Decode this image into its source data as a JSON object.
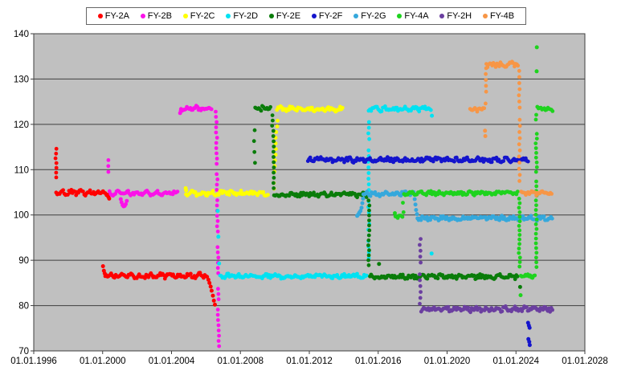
{
  "chart_data": {
    "type": "scatter",
    "title": "",
    "x_range": [
      1996,
      2028
    ],
    "y_range": [
      70,
      140
    ],
    "x_tick_labels": [
      "01.01.1996",
      "01.01.2000",
      "01.01.2004",
      "01.01.2008",
      "01.01.2012",
      "01.01.2016",
      "01.01.2020",
      "01.01.2024",
      "01.01.2028"
    ],
    "x_tick_years": [
      1996,
      2000,
      2004,
      2008,
      2012,
      2016,
      2020,
      2024,
      2028
    ],
    "y_tick_labels": [
      "70",
      "80",
      "90",
      "100",
      "110",
      "120",
      "130",
      "140"
    ],
    "y_tick_values": [
      70,
      80,
      90,
      100,
      110,
      120,
      130,
      140
    ],
    "grid": "on",
    "legend_position": "top-center",
    "plot_bg_color": "#c0c0c0",
    "grid_color": "#3f3f3f",
    "axis_text_color": "#000000",
    "series": [
      {
        "name": "FY-2A",
        "color": "#ff0000",
        "segments": [
          {
            "k": "drift",
            "x": 1997.28,
            "y1": 114.6,
            "y2": 106.0,
            "st": 1.05,
            "skip": 0.25
          },
          {
            "k": "level",
            "x1": 1997.3,
            "x2": 2000.35,
            "y": 104.9,
            "n": 0.5
          },
          {
            "k": "pts",
            "p": [
              [
                2000.33,
                104.0
              ],
              [
                2000.38,
                103.6
              ]
            ]
          },
          {
            "k": "pts",
            "p": [
              [
                2000.02,
                88.7
              ],
              [
                2000.07,
                87.7
              ],
              [
                2000.12,
                87.1
              ]
            ]
          },
          {
            "k": "level",
            "x1": 2000.15,
            "x2": 2006.1,
            "y": 86.6,
            "n": 0.5
          },
          {
            "k": "pts",
            "p": [
              [
                2006.14,
                85.7
              ],
              [
                2006.2,
                85.0
              ],
              [
                2006.27,
                84.2
              ],
              [
                2006.33,
                83.3
              ],
              [
                2006.4,
                82.2
              ],
              [
                2006.46,
                81.1
              ],
              [
                2006.52,
                80.2
              ]
            ]
          }
        ]
      },
      {
        "name": "FY-2B",
        "color": "#fb12e9",
        "segments": [
          {
            "k": "drift",
            "x": 2000.36,
            "y1": 112.1,
            "y2": 106.0,
            "st": 1.3,
            "skip": 0.25
          },
          {
            "k": "level",
            "x1": 2000.4,
            "x2": 2004.38,
            "y": 104.8,
            "n": 0.45
          },
          {
            "k": "pts",
            "p": [
              [
                2001.05,
                103.5
              ],
              [
                2001.1,
                102.8
              ],
              [
                2001.16,
                102.2
              ],
              [
                2001.22,
                101.9
              ],
              [
                2001.28,
                102.0
              ],
              [
                2001.34,
                102.4
              ],
              [
                2001.4,
                103.1
              ]
            ]
          },
          {
            "k": "pts",
            "p": [
              [
                2004.5,
                122.5
              ],
              [
                2004.54,
                123.0
              ]
            ]
          },
          {
            "k": "level",
            "x1": 2004.55,
            "x2": 2006.32,
            "y": 123.5,
            "n": 0.45
          },
          {
            "k": "drift",
            "x": 2006.6,
            "y1": 122.8,
            "y2": 70.4,
            "st": 1.15,
            "skip": 0.1,
            "dx": 0.14
          }
        ]
      },
      {
        "name": "FY-2C",
        "color": "#ffff00",
        "segments": [
          {
            "k": "pts",
            "p": [
              [
                2004.82,
                105.9
              ],
              [
                2004.85,
                105.4
              ]
            ]
          },
          {
            "k": "level",
            "x1": 2004.84,
            "x2": 2009.6,
            "y": 104.8,
            "n": 0.45
          },
          {
            "k": "drift",
            "x": 2009.92,
            "y1": 105.8,
            "y2": 122.2,
            "st": 1.25,
            "skip": 0.12,
            "dx": 0.22
          },
          {
            "k": "level",
            "x1": 2010.12,
            "x2": 2013.95,
            "y": 123.4,
            "n": 0.45
          }
        ]
      },
      {
        "name": "FY-2D",
        "color": "#00e2f2",
        "segments": [
          {
            "k": "pts",
            "p": [
              [
                2006.68,
                100.9
              ],
              [
                2006.72,
                95.2
              ],
              [
                2006.76,
                89.3
              ]
            ]
          },
          {
            "k": "level",
            "x1": 2006.82,
            "x2": 2015.38,
            "y": 86.5,
            "n": 0.45
          },
          {
            "k": "drift",
            "x": 2015.45,
            "y1": 88.0,
            "y2": 123.0,
            "st": 1.25,
            "skip": 0.15
          },
          {
            "k": "level",
            "x1": 2015.52,
            "x2": 2019.08,
            "y": 123.4,
            "n": 0.45
          },
          {
            "k": "pts",
            "p": [
              [
                2019.12,
                121.9
              ],
              [
                2019.1,
                91.5
              ]
            ]
          }
        ]
      },
      {
        "name": "FY-2E",
        "color": "#0a7c0a",
        "segments": [
          {
            "k": "drift",
            "x": 2008.82,
            "y1": 111.5,
            "y2": 121.0,
            "st": 2.4,
            "skip": 0.2
          },
          {
            "k": "level",
            "x1": 2008.86,
            "x2": 2009.78,
            "y": 123.5,
            "n": 0.55
          },
          {
            "k": "drift",
            "x": 2009.86,
            "y1": 122.0,
            "y2": 105.8,
            "st": 1.15,
            "skip": 0.08,
            "dx": 0.1
          },
          {
            "k": "level",
            "x1": 2009.95,
            "x2": 2015.4,
            "y": 104.5,
            "n": 0.45
          },
          {
            "k": "drift",
            "x": 2015.46,
            "y1": 103.2,
            "y2": 87.6,
            "st": 1.1,
            "skip": 0.08
          },
          {
            "k": "level",
            "x1": 2015.52,
            "x2": 2024.12,
            "y": 86.4,
            "n": 0.45
          },
          {
            "k": "pts",
            "p": [
              [
                2016.05,
                89.2
              ],
              [
                2024.24,
                84.1
              ]
            ]
          }
        ]
      },
      {
        "name": "FY-2F",
        "color": "#1414cc",
        "segments": [
          {
            "k": "level",
            "x1": 2011.92,
            "x2": 2024.76,
            "y": 112.2,
            "n": 0.5
          },
          {
            "k": "pts",
            "p": [
              [
                2024.7,
                76.2
              ],
              [
                2024.75,
                75.6
              ],
              [
                2024.79,
                75.1
              ],
              [
                2024.72,
                72.6
              ],
              [
                2024.77,
                72.0
              ],
              [
                2024.8,
                71.3
              ]
            ]
          }
        ]
      },
      {
        "name": "FY-2G",
        "color": "#35a8dc",
        "segments": [
          {
            "k": "pts",
            "p": [
              [
                2014.78,
                99.8
              ],
              [
                2014.84,
                100.1
              ],
              [
                2014.9,
                100.5
              ],
              [
                2014.97,
                100.9
              ],
              [
                2015.03,
                101.6
              ],
              [
                2015.08,
                102.6
              ],
              [
                2015.12,
                103.6
              ]
            ]
          },
          {
            "k": "level",
            "x1": 2015.14,
            "x2": 2018.08,
            "y": 104.7,
            "n": 0.45
          },
          {
            "k": "pts",
            "p": [
              [
                2018.12,
                103.5
              ],
              [
                2018.16,
                102.3
              ],
              [
                2018.2,
                101.1
              ],
              [
                2018.25,
                100.2
              ]
            ]
          },
          {
            "k": "level",
            "x1": 2018.28,
            "x2": 2026.12,
            "y": 99.3,
            "n": 0.45
          }
        ]
      },
      {
        "name": "FY-4A",
        "color": "#1ed31e",
        "segments": [
          {
            "k": "pts",
            "p": [
              [
                2016.97,
                100.4
              ]
            ]
          },
          {
            "k": "level",
            "x1": 2017.0,
            "x2": 2017.42,
            "y": 99.6,
            "n": 0.35
          },
          {
            "k": "drift",
            "x": 2017.46,
            "y1": 100.6,
            "y2": 103.8,
            "st": 1.05,
            "skip": 0.1
          },
          {
            "k": "level",
            "x1": 2017.5,
            "x2": 2024.14,
            "y": 104.8,
            "n": 0.4
          },
          {
            "k": "drift",
            "x": 2024.2,
            "y1": 103.6,
            "y2": 87.8,
            "st": 1.0,
            "skip": 0.06
          },
          {
            "k": "pts",
            "p": [
              [
                2024.27,
                82.3
              ]
            ]
          },
          {
            "k": "level",
            "x1": 2024.28,
            "x2": 2025.12,
            "y": 86.5,
            "n": 0.4
          },
          {
            "k": "drift",
            "x": 2025.18,
            "y1": 88.5,
            "y2": 123.0,
            "st": 1.05,
            "skip": 0.08
          },
          {
            "k": "pts",
            "p": [
              [
                2025.2,
                131.7
              ],
              [
                2025.21,
                137.0
              ]
            ]
          },
          {
            "k": "level",
            "x1": 2025.24,
            "x2": 2026.14,
            "y": 123.4,
            "n": 0.4
          }
        ]
      },
      {
        "name": "FY-2H",
        "color": "#6b3fa0",
        "segments": [
          {
            "k": "drift",
            "x": 2018.44,
            "y1": 94.7,
            "y2": 80.2,
            "st": 1.3,
            "skip": 0.1
          },
          {
            "k": "level",
            "x1": 2018.5,
            "x2": 2026.12,
            "y": 79.2,
            "n": 0.5
          }
        ]
      },
      {
        "name": "FY-4B",
        "color": "#f79646",
        "segments": [
          {
            "k": "level",
            "x1": 2021.34,
            "x2": 2022.18,
            "y": 123.3,
            "n": 0.4
          },
          {
            "k": "pts",
            "p": [
              [
                2022.2,
                118.6
              ],
              [
                2022.22,
                117.4
              ]
            ]
          },
          {
            "k": "drift",
            "x": 2022.24,
            "y1": 124.6,
            "y2": 132.4,
            "st": 1.3,
            "skip": 0.1
          },
          {
            "k": "level",
            "x1": 2022.28,
            "x2": 2024.12,
            "y": 133.2,
            "n": 0.5
          },
          {
            "k": "drift",
            "x": 2024.2,
            "y1": 131.8,
            "y2": 106.2,
            "st": 1.35,
            "skip": 0.15
          },
          {
            "k": "level",
            "x1": 2024.3,
            "x2": 2026.12,
            "y": 104.8,
            "n": 0.4
          }
        ]
      }
    ]
  }
}
